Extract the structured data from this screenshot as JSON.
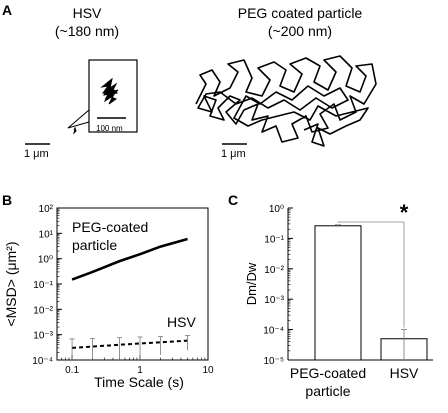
{
  "panels": {
    "A": {
      "letter": "A",
      "left_title_line1": "HSV",
      "left_title_line2": "(~180 nm)",
      "right_title_line1": "PEG coated particle",
      "right_title_line2": "(~200 nm)",
      "left_scale_label": "1 μm",
      "inset_scale_label": "100 nm",
      "right_scale_label": "1 μm"
    },
    "B": {
      "letter": "B"
    },
    "C": {
      "letter": "C"
    }
  },
  "chart_data": [
    {
      "id": "B",
      "type": "line",
      "ylabel": "<MSD> (μm²)",
      "xlabel": "Time Scale (s)",
      "xscale": "log",
      "yscale": "log",
      "xlim": [
        0.06,
        10
      ],
      "ylim": [
        0.0001,
        100
      ],
      "x_ticks": [
        "0.1",
        "1",
        "10"
      ],
      "y_ticks": [
        "10⁻⁴",
        "10⁻³",
        "10⁻²",
        "10⁻¹",
        "10⁰",
        "10¹",
        "10²"
      ],
      "series": [
        {
          "name": "PEG-coated particle",
          "style": "solid",
          "x": [
            0.1,
            0.2,
            0.5,
            1,
            2,
            5
          ],
          "y": [
            0.15,
            0.3,
            0.8,
            1.5,
            3,
            6
          ]
        },
        {
          "name": "HSV",
          "style": "dashed",
          "x": [
            0.1,
            0.2,
            0.5,
            1,
            2,
            5
          ],
          "y": [
            0.0003,
            0.00034,
            0.0004,
            0.00045,
            0.0005,
            0.00058
          ],
          "err": [
            0.00038,
            0.00036,
            0.00036,
            0.00036,
            0.00034,
            0.00034
          ]
        }
      ],
      "series_labels": [
        "PEG-coated\nparticle",
        "HSV"
      ]
    },
    {
      "id": "C",
      "type": "bar",
      "ylabel": "Dm/Dw",
      "yscale": "log",
      "ylim": [
        1e-05,
        1
      ],
      "y_ticks": [
        "10⁻⁵",
        "10⁻⁴",
        "10⁻³",
        "10⁻²",
        "10⁻¹",
        "10⁰"
      ],
      "categories": [
        "PEG-coated\nparticle",
        "HSV"
      ],
      "values": [
        0.26,
        5e-05
      ],
      "err": [
        0.02,
        5e-05
      ],
      "annotation": "*"
    }
  ]
}
